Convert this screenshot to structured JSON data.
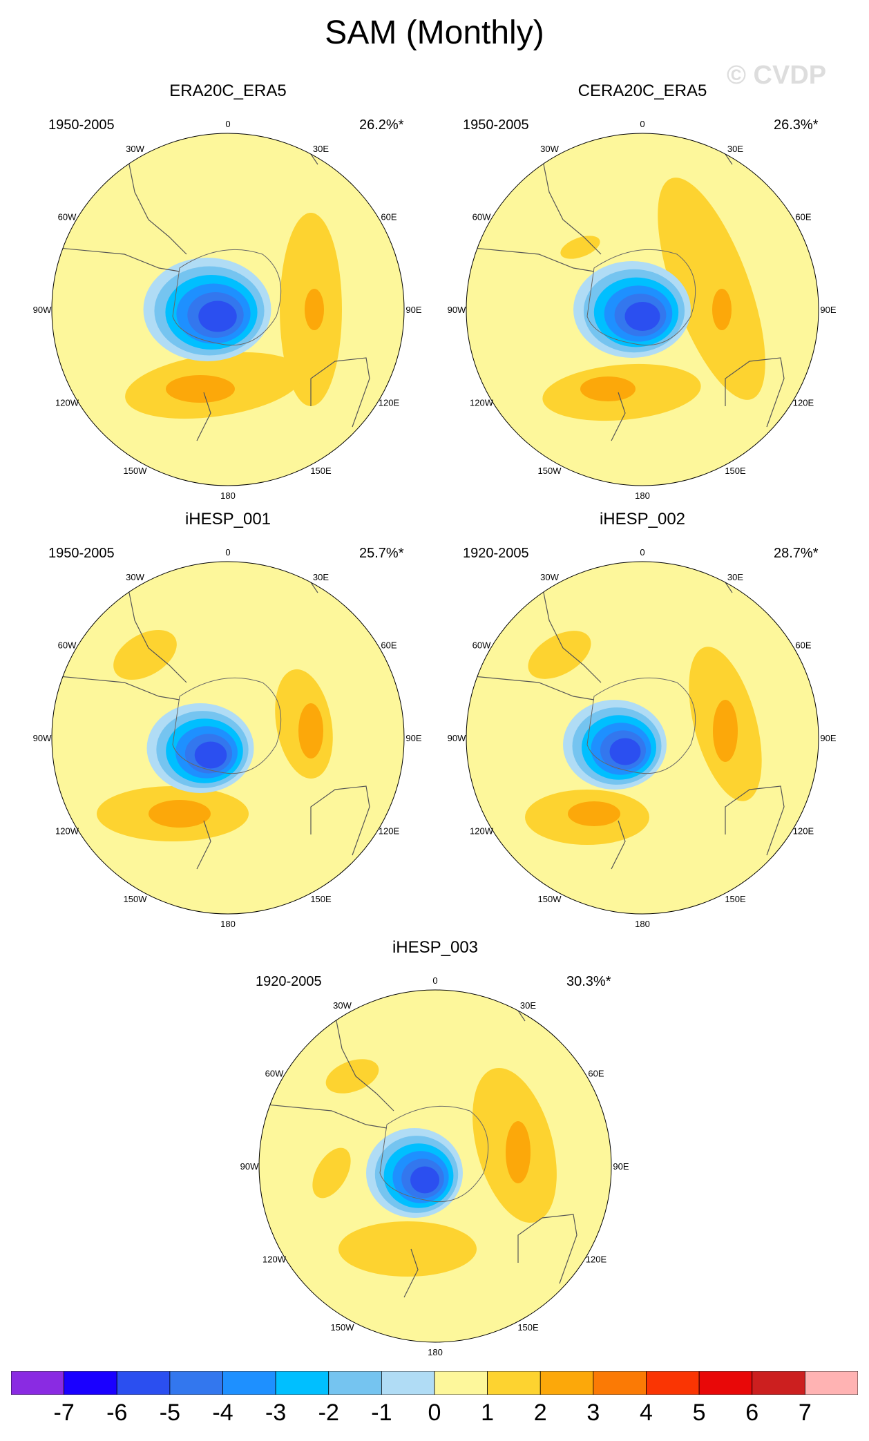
{
  "title": "SAM (Monthly)",
  "watermark": "© CVDP",
  "longitude_labels": [
    "0",
    "30E",
    "60E",
    "90E",
    "120E",
    "150E",
    "180",
    "150W",
    "120W",
    "90W",
    "60W",
    "30W"
  ],
  "panels": [
    {
      "name": "ERA20C_ERA5",
      "years": "1950-2005",
      "pct": "26.2%*"
    },
    {
      "name": "CERA20C_ERA5",
      "years": "1950-2005",
      "pct": "26.3%*"
    },
    {
      "name": "iHESP_001",
      "years": "1950-2005",
      "pct": "25.7%*"
    },
    {
      "name": "iHESP_002",
      "years": "1920-2005",
      "pct": "28.7%*"
    },
    {
      "name": "iHESP_003",
      "years": "1920-2005",
      "pct": "30.3%*"
    }
  ],
  "colorbar": {
    "labels": [
      "-7",
      "-6",
      "-5",
      "-4",
      "-3",
      "-2",
      "-1",
      "0",
      "1",
      "2",
      "3",
      "4",
      "5",
      "6",
      "7"
    ],
    "colors": [
      "#8a2be2",
      "#1a00ff",
      "#2b4ff0",
      "#3377ee",
      "#1e90ff",
      "#00bfff",
      "#75c4f0",
      "#b0dcf5",
      "#fdf79b",
      "#fdd330",
      "#fca80a",
      "#fb7a05",
      "#fa3503",
      "#e80808",
      "#cc1f1f",
      "#ffb3b3"
    ]
  },
  "colors": {
    "land_line": "#555555",
    "blue_levels": [
      "#b0dcf5",
      "#75c4f0",
      "#00bfff",
      "#1e90ff",
      "#3377ee",
      "#2b4ff0"
    ],
    "warm_levels": [
      "#fdd330",
      "#fca80a"
    ],
    "background": "#fdf79b"
  }
}
